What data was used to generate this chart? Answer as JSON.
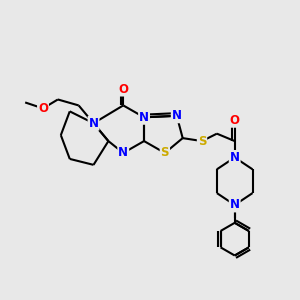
{
  "background_color": "#e8e8e8",
  "atom_colors": {
    "N": "#0000ff",
    "O": "#ff0000",
    "S": "#ccaa00",
    "C": "#000000"
  },
  "bond_color": "#000000",
  "bond_width": 1.5,
  "figsize": [
    3.0,
    3.0
  ],
  "dpi": 100,
  "xlim": [
    0,
    10
  ],
  "ylim": [
    0,
    10
  ],
  "label_fontsize": 8.5,
  "label_bg": "#e8e8e8"
}
